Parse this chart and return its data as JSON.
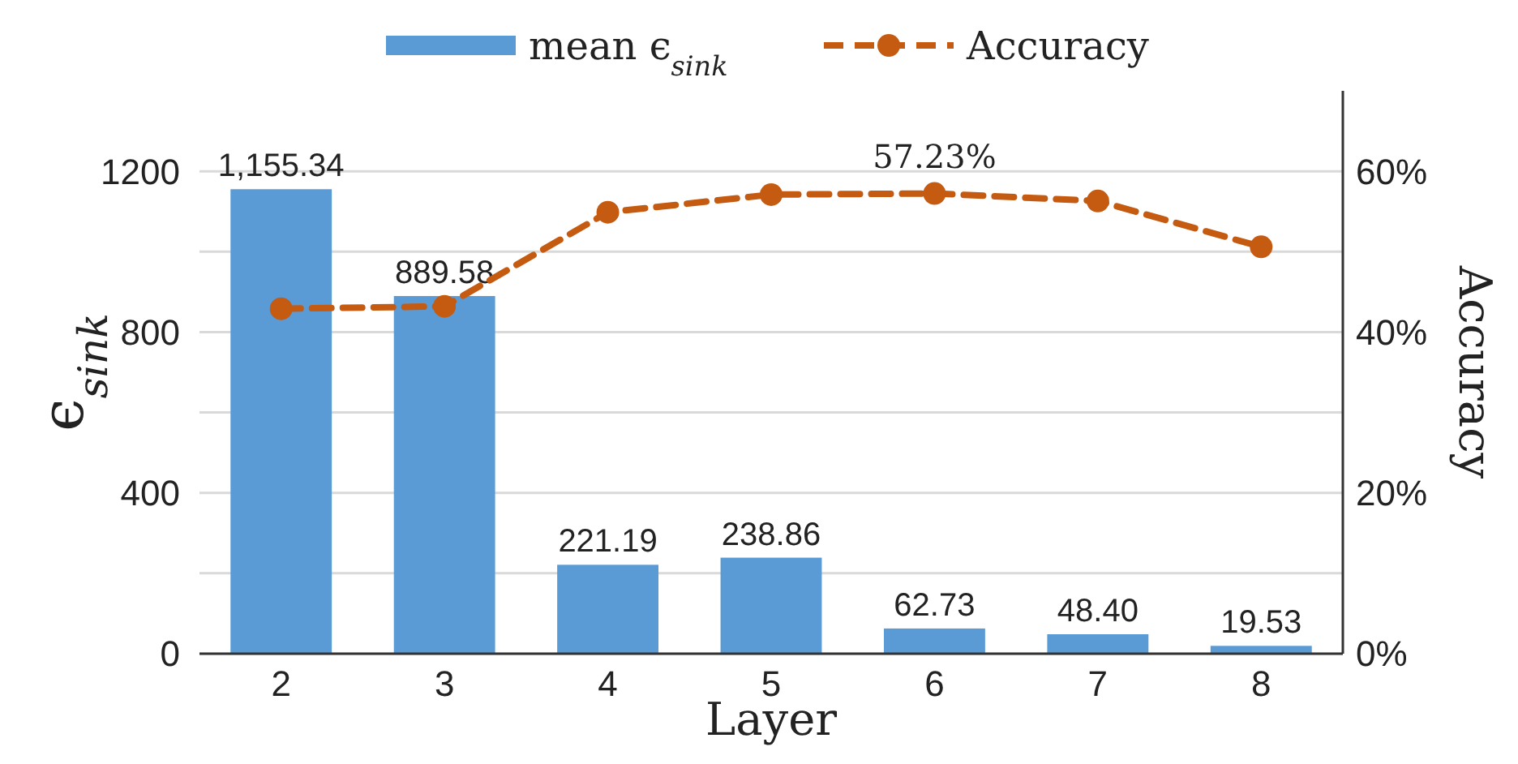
{
  "chart_data": {
    "type": "bar",
    "xlabel": "Layer",
    "ylabel": "ϵ$_{sink}$",
    "y2label": "Accuracy",
    "categories": [
      "2",
      "3",
      "4",
      "5",
      "6",
      "7",
      "8"
    ],
    "series": [
      {
        "name": "mean ϵ$_{sink}$",
        "color": "#5b9bd5",
        "values": [
          1155.34,
          889.58,
          221.19,
          238.86,
          62.73,
          48.4,
          19.53
        ],
        "value_labels": [
          "1,155.34",
          "889.58",
          "221.19",
          "238.86",
          "62.73",
          "48.40",
          "19.53"
        ]
      },
      {
        "name": "Accuracy",
        "type": "line",
        "axis": "y2",
        "color": "#c55a11",
        "marker": "circle",
        "line_style": "dashed",
        "values": [
          42.9,
          43.2,
          54.9,
          57.1,
          57.23,
          56.3,
          50.6
        ],
        "value_labels": [
          null,
          null,
          null,
          null,
          "57.23%",
          null,
          null
        ]
      }
    ],
    "ylim": [
      0,
      1400
    ],
    "yticks": [
      0,
      {
        "value": 200,
        "label": null
      },
      400,
      {
        "value": 600,
        "label": null
      },
      800,
      {
        "value": 1000,
        "label": null
      },
      1200
    ],
    "y2lim": [
      0,
      70
    ],
    "y2ticks": [
      {
        "value": 0,
        "label": "0%"
      },
      {
        "value": 20,
        "label": "20%"
      },
      {
        "value": 40,
        "label": "40%"
      },
      {
        "value": 60,
        "label": "60%"
      }
    ],
    "grid": "y",
    "legend": "top"
  }
}
